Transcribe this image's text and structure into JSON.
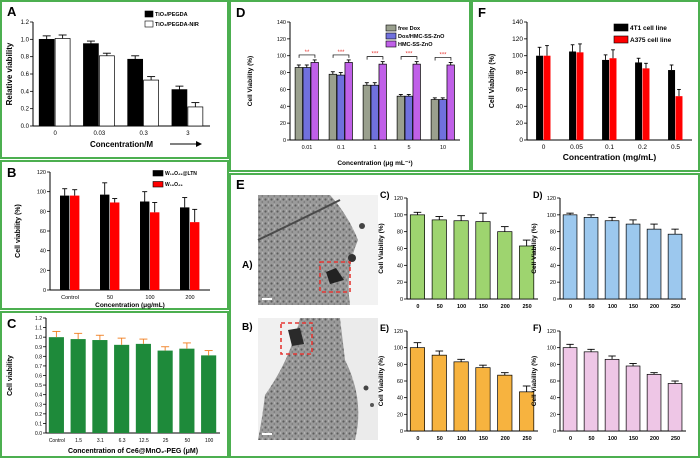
{
  "colors": {
    "border": "#4caf50",
    "black": "#000000",
    "white": "#ffffff",
    "red": "#ff0000",
    "green": "#1e8a3a",
    "errorbar_orange": "#f07d1e",
    "gray_bar": "#9aa08e",
    "blue_bar": "#7070dd",
    "magenta_bar": "#c060e8",
    "sig_red": "#e53935",
    "e_green": "#9ed46f",
    "e_blue": "#9cc8ee",
    "e_orange": "#f7b33f",
    "e_pink": "#eec6e6"
  },
  "panels": {
    "A": {
      "letter": "A"
    },
    "B": {
      "letter": "B"
    },
    "C": {
      "letter": "C"
    },
    "D": {
      "letter": "D"
    },
    "E": {
      "letter": "E",
      "sub_a": "A)",
      "sub_b": "B)"
    },
    "F": {
      "letter": "F"
    }
  },
  "chart_data": [
    {
      "id": "A",
      "type": "bar",
      "categories": [
        "0",
        "0.03",
        "0.3",
        "3"
      ],
      "series": [
        {
          "name": "TiO2/PEGDA",
          "values": [
            1.0,
            0.95,
            0.77,
            0.42
          ],
          "errors": [
            0.04,
            0.03,
            0.04,
            0.04
          ]
        },
        {
          "name": "TiO2/PEGDA-NIR",
          "values": [
            1.01,
            0.81,
            0.53,
            0.22
          ],
          "errors": [
            0.04,
            0.03,
            0.04,
            0.05
          ]
        }
      ],
      "ylim": [
        0,
        1.2
      ],
      "yticks": [
        "0.0",
        "0.2",
        "0.4",
        "0.6",
        "0.8",
        "1.0",
        "1.2"
      ],
      "xlabel": "Concentration/M",
      "ylabel": "Relative viability",
      "legend": [
        "TiO₂/PEGDA",
        "TiO₂/PEGDA-NIR"
      ]
    },
    {
      "id": "B",
      "type": "bar",
      "categories": [
        "Control",
        "50",
        "100",
        "200"
      ],
      "series": [
        {
          "name": "W18O49@LTN",
          "values": [
            96,
            97,
            90,
            84
          ],
          "errors": [
            7,
            12,
            10,
            10
          ]
        },
        {
          "name": "W18O49",
          "values": [
            96,
            89,
            79,
            69
          ],
          "errors": [
            6,
            4,
            10,
            13
          ]
        }
      ],
      "ylim": [
        0,
        120
      ],
      "yticks": [
        "0",
        "20",
        "40",
        "60",
        "80",
        "100",
        "120"
      ],
      "xlabel": "Concentration (μg/mL)",
      "ylabel": "Cell viability (%)",
      "legend": [
        "W₁₈O₄₉@LTN",
        "W₁₈O₄₉"
      ]
    },
    {
      "id": "C",
      "type": "bar",
      "categories": [
        "Control",
        "1.5",
        "3.1",
        "6.3",
        "12.5",
        "25",
        "50",
        "100"
      ],
      "values": [
        1.0,
        0.98,
        0.97,
        0.92,
        0.93,
        0.86,
        0.88,
        0.81
      ],
      "errors": [
        0.06,
        0.06,
        0.05,
        0.07,
        0.05,
        0.04,
        0.06,
        0.05
      ],
      "ylim": [
        0,
        1.2
      ],
      "yticks": [
        "0.0",
        "0.1",
        "0.2",
        "0.3",
        "0.4",
        "0.5",
        "0.6",
        "0.7",
        "0.8",
        "0.9",
        "1.0",
        "1.1",
        "1.2"
      ],
      "xlabel": "Concentration of Ce6@MnO₂-PEG (μM)",
      "ylabel": "Cell viability"
    },
    {
      "id": "D",
      "type": "bar",
      "categories": [
        "0.01",
        "0.1",
        "1",
        "5",
        "10"
      ],
      "series": [
        {
          "name": "free Dox",
          "values": [
            86,
            78,
            65,
            52,
            48
          ],
          "errors": [
            3,
            3,
            3,
            2,
            2
          ]
        },
        {
          "name": "Dox/HMC-SS-ZnO",
          "values": [
            86,
            77,
            65,
            52,
            48
          ],
          "errors": [
            3,
            3,
            3,
            2,
            2
          ]
        },
        {
          "name": "HMC-SS-ZnO",
          "values": [
            92,
            92,
            90,
            90,
            89
          ],
          "errors": [
            3,
            3,
            3,
            3,
            3
          ]
        }
      ],
      "significance": [
        "**",
        "***",
        "***",
        "***",
        "***"
      ],
      "ylim": [
        0,
        140
      ],
      "yticks": [
        "0",
        "20",
        "40",
        "60",
        "80",
        "100",
        "120",
        "140"
      ],
      "xlabel": "Concentration (μg mL⁻¹)",
      "ylabel": "Cell Viability (%)",
      "legend": [
        "free Dox",
        "Dox/HMC-SS-ZnO",
        "HMC-SS-ZnO"
      ]
    },
    {
      "id": "F",
      "type": "bar",
      "categories": [
        "0",
        "0.05",
        "0.1",
        "0.2",
        "0.5"
      ],
      "series": [
        {
          "name": "4T1 cell line",
          "values": [
            100,
            105,
            95,
            92,
            83
          ],
          "errors": [
            10,
            8,
            6,
            5,
            6
          ]
        },
        {
          "name": "A375 cell line",
          "values": [
            100,
            104,
            97,
            85,
            52
          ],
          "errors": [
            12,
            10,
            10,
            6,
            8
          ]
        }
      ],
      "ylim": [
        0,
        140
      ],
      "yticks": [
        "0",
        "20",
        "40",
        "60",
        "80",
        "100",
        "120",
        "140"
      ],
      "xlabel": "Concentration (mg/mL)",
      "ylabel": "Cell Viability (%)",
      "legend": [
        "4T1  cell line",
        "A375 cell line"
      ]
    },
    {
      "id": "EC",
      "type": "bar",
      "sublabel": "C)",
      "categories": [
        "0",
        "50",
        "100",
        "150",
        "200",
        "250"
      ],
      "values": [
        100,
        94,
        93,
        92,
        80,
        63
      ],
      "errors": [
        3,
        4,
        6,
        10,
        6,
        7
      ],
      "ylim": [
        0,
        120
      ],
      "yticks": [
        "0",
        "20",
        "40",
        "60",
        "80",
        "100",
        "120"
      ],
      "ylabel": "Cell Viability (%)"
    },
    {
      "id": "ED",
      "type": "bar",
      "sublabel": "D)",
      "categories": [
        "0",
        "50",
        "100",
        "150",
        "200",
        "250"
      ],
      "values": [
        100,
        97,
        93,
        89,
        83,
        77
      ],
      "errors": [
        2,
        3,
        4,
        5,
        6,
        6
      ],
      "ylim": [
        0,
        120
      ],
      "yticks": [
        "0",
        "20",
        "40",
        "60",
        "80",
        "100",
        "120"
      ],
      "ylabel": "Cell Viability (%)"
    },
    {
      "id": "EE",
      "type": "bar",
      "sublabel": "E)",
      "categories": [
        "0",
        "50",
        "100",
        "150",
        "200",
        "250"
      ],
      "values": [
        100,
        91,
        83,
        76,
        67,
        47
      ],
      "errors": [
        6,
        5,
        3,
        3,
        3,
        7
      ],
      "ylim": [
        0,
        120
      ],
      "yticks": [
        "0",
        "20",
        "40",
        "60",
        "80",
        "100",
        "120"
      ],
      "ylabel": "Cell Viability (%)"
    },
    {
      "id": "EF",
      "type": "bar",
      "sublabel": "F)",
      "categories": [
        "0",
        "50",
        "100",
        "150",
        "200",
        "250"
      ],
      "values": [
        100,
        95,
        86,
        78,
        68,
        57
      ],
      "errors": [
        4,
        3,
        4,
        3,
        2,
        3
      ],
      "ylim": [
        0,
        120
      ],
      "yticks": [
        "0",
        "20",
        "40",
        "60",
        "80",
        "100",
        "120"
      ],
      "ylabel": "Cell Viability (%)"
    }
  ]
}
